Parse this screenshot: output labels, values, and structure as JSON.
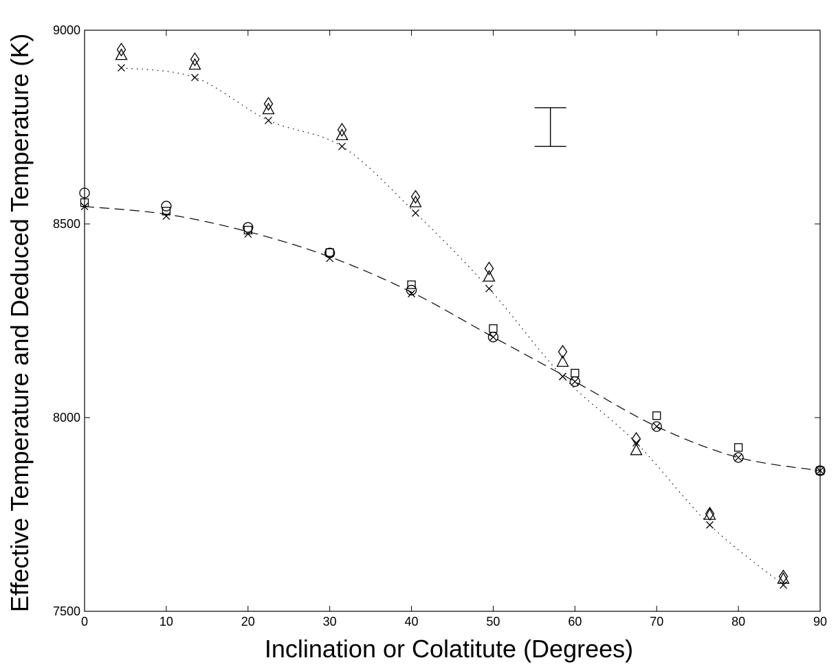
{
  "chart_data": {
    "type": "scatter",
    "xlabel": "Inclination or Colatitute (Degrees)",
    "ylabel": "Effective Temperature and Deduced Temperature (K)",
    "xlim": [
      0,
      90
    ],
    "ylim": [
      7500,
      9000
    ],
    "x_ticks": [
      0,
      10,
      20,
      30,
      40,
      50,
      60,
      70,
      80,
      90
    ],
    "y_ticks": [
      7500,
      8000,
      8500,
      9000
    ],
    "grid": false,
    "legend": "none",
    "error_bar": {
      "x": 57,
      "y_low": 8700,
      "y_high": 8800
    },
    "series": [
      {
        "marker": "circle",
        "x": [
          0,
          10,
          20,
          30,
          40,
          50,
          60,
          70,
          80,
          90
        ],
        "y": [
          8580,
          8546,
          8491,
          8425,
          8329,
          8208,
          8093,
          7977,
          7897,
          7863
        ]
      },
      {
        "marker": "square",
        "x": [
          0,
          10,
          20,
          30,
          40,
          50,
          60,
          70,
          80,
          90
        ],
        "y": [
          8555,
          8533,
          8484,
          8426,
          8343,
          8230,
          8115,
          8005,
          7923,
          7863
        ]
      },
      {
        "marker": "x",
        "x": [
          0,
          10,
          20,
          30,
          40,
          50,
          58.5,
          60,
          70,
          80,
          90
        ],
        "y": [
          8545,
          8520,
          8474,
          8411,
          8320,
          8208,
          8106,
          8093,
          7977,
          7897,
          7863
        ]
      },
      {
        "marker": "diamond",
        "x": [
          4.5,
          13.5,
          22.5,
          31.5,
          40.5,
          49.5,
          58.5,
          67.5,
          76.5,
          85.5
        ],
        "y": [
          8950,
          8925,
          8810,
          8743,
          8570,
          8385,
          8170,
          7945,
          7752,
          7590
        ]
      },
      {
        "marker": "triangle",
        "x": [
          4.5,
          13.5,
          22.5,
          31.5,
          40.5,
          49.5,
          58.5,
          67.5,
          76.5,
          85.5
        ],
        "y": [
          8935,
          8910,
          8795,
          8728,
          8555,
          8363,
          8143,
          7915,
          7748,
          7583
        ]
      },
      {
        "marker": "x",
        "x": [
          4.5,
          13.5,
          22.5,
          31.5,
          40.5,
          49.5,
          58.5,
          67.5,
          76.5,
          85.5
        ],
        "y": [
          8903,
          8878,
          8767,
          8700,
          8528,
          8333,
          8106,
          7935,
          7723,
          7568
        ]
      }
    ],
    "lines": [
      {
        "style": "dashed",
        "x": [
          0,
          10,
          20,
          30,
          40,
          50,
          60,
          70,
          80,
          90
        ],
        "y": [
          8545,
          8525,
          8480,
          8415,
          8324,
          8208,
          8093,
          7977,
          7897,
          7863
        ]
      },
      {
        "style": "dotted",
        "x": [
          4.5,
          13.5,
          22.5,
          31.5,
          40.5,
          49.5,
          58.5,
          67.5,
          76.5,
          85.5
        ],
        "y": [
          8903,
          8878,
          8767,
          8700,
          8528,
          8333,
          8106,
          7935,
          7723,
          7568
        ]
      }
    ]
  }
}
